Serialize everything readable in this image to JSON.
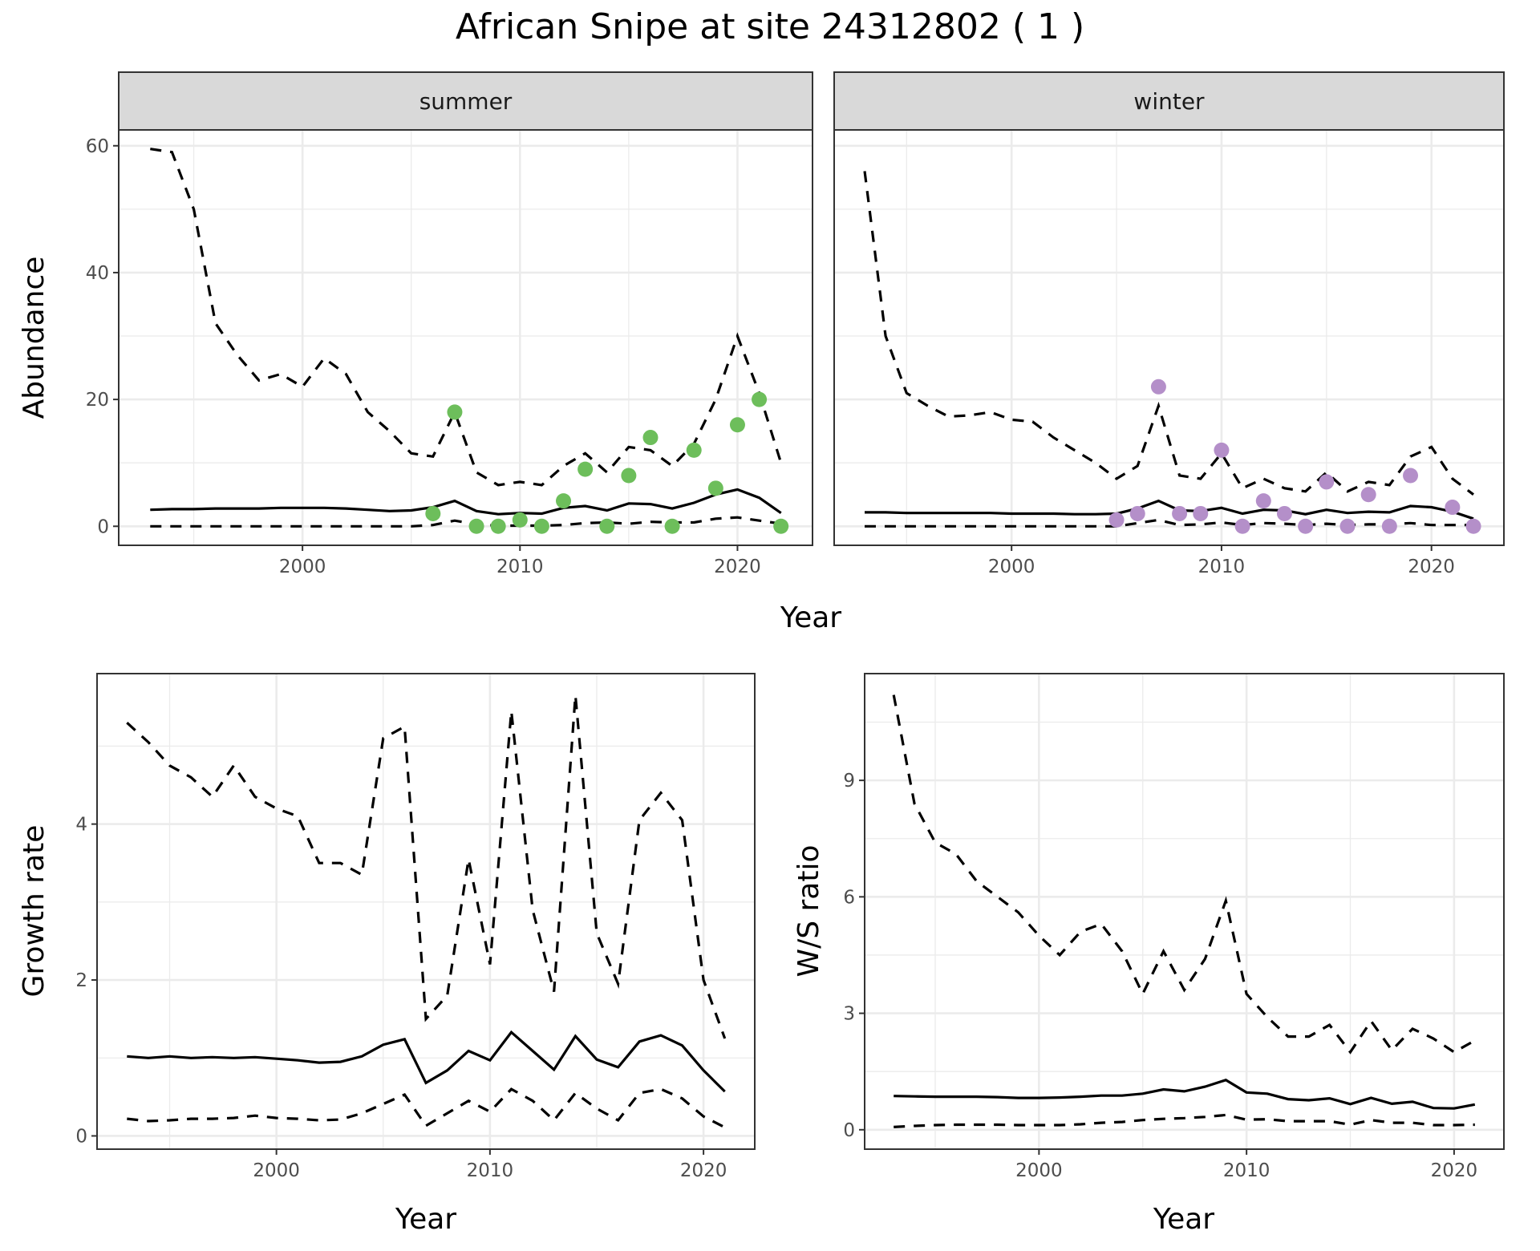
{
  "title": "African Snipe at site 24312802 ( 1 )",
  "colors": {
    "summer_points": "#6DBE5B",
    "winter_points": "#B48FC9",
    "lines": "#000000",
    "strip_fill": "#D9D9D9",
    "grid": "#EBEBEB"
  },
  "chart_data": [
    {
      "type": "line",
      "xlabel": "Year",
      "ylabel": "Abundance",
      "xlim": [
        1991.55,
        2023.45
      ],
      "ylim": [
        -3,
        62.5
      ],
      "xticks": [
        2000,
        2010,
        2020
      ],
      "yticks": [
        0,
        20,
        40,
        60
      ],
      "grid": true,
      "facets": [
        {
          "label": "summer",
          "x": [
            1993,
            1994,
            1995,
            1996,
            1997,
            1998,
            1999,
            2000,
            2001,
            2002,
            2003,
            2004,
            2005,
            2006,
            2007,
            2008,
            2009,
            2010,
            2011,
            2012,
            2013,
            2014,
            2015,
            2016,
            2017,
            2018,
            2019,
            2020,
            2021,
            2022
          ],
          "upper": [
            59.5,
            59,
            50,
            32,
            27,
            23,
            24,
            22,
            26.5,
            24,
            18,
            15,
            11.5,
            11,
            18,
            8.5,
            6.5,
            7,
            6.5,
            9.5,
            11.5,
            8.5,
            12.5,
            12,
            9.5,
            13,
            20,
            30,
            21,
            10
          ],
          "mean": [
            2.6,
            2.7,
            2.7,
            2.8,
            2.8,
            2.8,
            2.9,
            2.9,
            2.9,
            2.8,
            2.6,
            2.4,
            2.5,
            3,
            4,
            2.4,
            1.9,
            2.1,
            2,
            2.9,
            3.2,
            2.5,
            3.6,
            3.5,
            2.8,
            3.7,
            5,
            5.8,
            4.5,
            2.1
          ],
          "lower": [
            0,
            0,
            0,
            0,
            0,
            0,
            0,
            0,
            0,
            0,
            0,
            0,
            0,
            0.2,
            0.9,
            0.3,
            0.1,
            0.1,
            0.1,
            0.2,
            0.5,
            0.6,
            0.4,
            0.7,
            0.6,
            0.6,
            1.2,
            1.4,
            0.9,
            0.4
          ],
          "points": {
            "x": [
              2006,
              2007,
              2008,
              2009,
              2010,
              2011,
              2012,
              2013,
              2014,
              2015,
              2016,
              2017,
              2018,
              2019,
              2020,
              2021,
              2022
            ],
            "y": [
              2,
              18,
              0,
              0,
              1,
              0,
              4,
              9,
              0,
              8,
              14,
              0,
              12,
              6,
              16,
              20,
              0
            ]
          }
        },
        {
          "label": "winter",
          "x": [
            1993,
            1994,
            1995,
            1996,
            1997,
            1998,
            1999,
            2000,
            2001,
            2002,
            2003,
            2004,
            2005,
            2006,
            2007,
            2008,
            2009,
            2010,
            2011,
            2012,
            2013,
            2014,
            2015,
            2016,
            2017,
            2018,
            2019,
            2020,
            2021,
            2022
          ],
          "upper": [
            56,
            30,
            21,
            19,
            17.3,
            17.5,
            18,
            16.8,
            16.5,
            14,
            12,
            10,
            7.5,
            9.5,
            19,
            8,
            7.5,
            11.5,
            6,
            7.5,
            6,
            5.5,
            8.5,
            5.5,
            7,
            6.5,
            11,
            12.5,
            7.5,
            5
          ],
          "mean": [
            2.2,
            2.2,
            2.1,
            2.1,
            2.1,
            2.1,
            2.1,
            2.0,
            2.0,
            2.0,
            1.9,
            1.9,
            2.0,
            2.8,
            4,
            2.5,
            2.4,
            2.9,
            2,
            2.6,
            2.5,
            1.9,
            2.6,
            2.1,
            2.3,
            2.2,
            3.2,
            3,
            2.3,
            1.2
          ],
          "lower": [
            0,
            0,
            0,
            0,
            0,
            0,
            0,
            0,
            0,
            0,
            0,
            0,
            0,
            0.5,
            1,
            0.2,
            0.3,
            0.6,
            0.2,
            0.5,
            0.4,
            0.2,
            0.4,
            0.2,
            0.3,
            0.3,
            0.5,
            0.2,
            0.2,
            0.2
          ],
          "points": {
            "x": [
              2005,
              2006,
              2007,
              2008,
              2009,
              2010,
              2011,
              2012,
              2013,
              2014,
              2015,
              2016,
              2017,
              2018,
              2019,
              2021,
              2022
            ],
            "y": [
              1,
              2,
              22,
              2,
              2,
              12,
              0,
              4,
              2,
              0,
              7,
              0,
              5,
              0,
              8,
              3,
              0
            ]
          }
        }
      ]
    },
    {
      "type": "line",
      "xlabel": "Year",
      "ylabel": "Growth rate",
      "xlim": [
        1991.6,
        2022.4
      ],
      "ylim": [
        -0.17,
        5.93
      ],
      "xticks": [
        2000,
        2010,
        2020
      ],
      "yticks": [
        0,
        2,
        4
      ],
      "grid": true,
      "x": [
        1993,
        1994,
        1995,
        1996,
        1997,
        1998,
        1999,
        2000,
        2001,
        2002,
        2003,
        2004,
        2005,
        2006,
        2007,
        2008,
        2009,
        2010,
        2011,
        2012,
        2013,
        2014,
        2015,
        2016,
        2017,
        2018,
        2019,
        2020,
        2021
      ],
      "upper": [
        5.3,
        5.05,
        4.75,
        4.6,
        4.35,
        4.75,
        4.35,
        4.2,
        4.1,
        3.5,
        3.5,
        3.35,
        5.1,
        5.25,
        1.5,
        1.8,
        3.55,
        2.2,
        5.45,
        2.9,
        1.85,
        5.65,
        2.6,
        1.95,
        4.05,
        4.4,
        4.05,
        2.0,
        1.25
      ],
      "mean": [
        1.02,
        1.0,
        1.02,
        1.0,
        1.01,
        1.0,
        1.01,
        0.99,
        0.97,
        0.94,
        0.95,
        1.02,
        1.17,
        1.24,
        0.68,
        0.84,
        1.09,
        0.97,
        1.33,
        1.09,
        0.85,
        1.28,
        0.98,
        0.88,
        1.21,
        1.29,
        1.16,
        0.84,
        0.57
      ],
      "lower": [
        0.22,
        0.19,
        0.2,
        0.22,
        0.22,
        0.23,
        0.26,
        0.23,
        0.22,
        0.2,
        0.21,
        0.29,
        0.41,
        0.53,
        0.13,
        0.29,
        0.45,
        0.31,
        0.6,
        0.45,
        0.2,
        0.55,
        0.35,
        0.2,
        0.55,
        0.6,
        0.48,
        0.25,
        0.11
      ]
    },
    {
      "type": "line",
      "xlabel": "Year",
      "ylabel": "W/S ratio",
      "xlim": [
        1991.6,
        2022.4
      ],
      "ylim": [
        -0.5,
        11.75
      ],
      "xticks": [
        2000,
        2010,
        2020
      ],
      "yticks": [
        0,
        3,
        6,
        9
      ],
      "grid": true,
      "x": [
        1993,
        1994,
        1995,
        1996,
        1997,
        1998,
        1999,
        2000,
        2001,
        2002,
        2003,
        2004,
        2005,
        2006,
        2007,
        2008,
        2009,
        2010,
        2011,
        2012,
        2013,
        2014,
        2015,
        2016,
        2017,
        2018,
        2019,
        2020,
        2021
      ],
      "upper": [
        11.2,
        8.4,
        7.4,
        7.1,
        6.4,
        6,
        5.6,
        5,
        4.5,
        5.1,
        5.3,
        4.6,
        3.5,
        4.6,
        3.6,
        4.4,
        5.9,
        3.5,
        2.9,
        2.4,
        2.4,
        2.7,
        2.0,
        2.8,
        2.05,
        2.6,
        2.35,
        2.0,
        2.3
      ],
      "mean": [
        0.87,
        0.86,
        0.85,
        0.85,
        0.85,
        0.84,
        0.82,
        0.82,
        0.83,
        0.85,
        0.88,
        0.88,
        0.93,
        1.04,
        0.99,
        1.11,
        1.28,
        0.96,
        0.93,
        0.79,
        0.76,
        0.81,
        0.66,
        0.82,
        0.67,
        0.72,
        0.56,
        0.55,
        0.65
      ],
      "lower": [
        0.07,
        0.1,
        0.12,
        0.13,
        0.13,
        0.13,
        0.12,
        0.12,
        0.12,
        0.14,
        0.18,
        0.2,
        0.25,
        0.28,
        0.3,
        0.33,
        0.38,
        0.26,
        0.27,
        0.22,
        0.22,
        0.22,
        0.13,
        0.25,
        0.18,
        0.18,
        0.12,
        0.12,
        0.13
      ]
    }
  ]
}
